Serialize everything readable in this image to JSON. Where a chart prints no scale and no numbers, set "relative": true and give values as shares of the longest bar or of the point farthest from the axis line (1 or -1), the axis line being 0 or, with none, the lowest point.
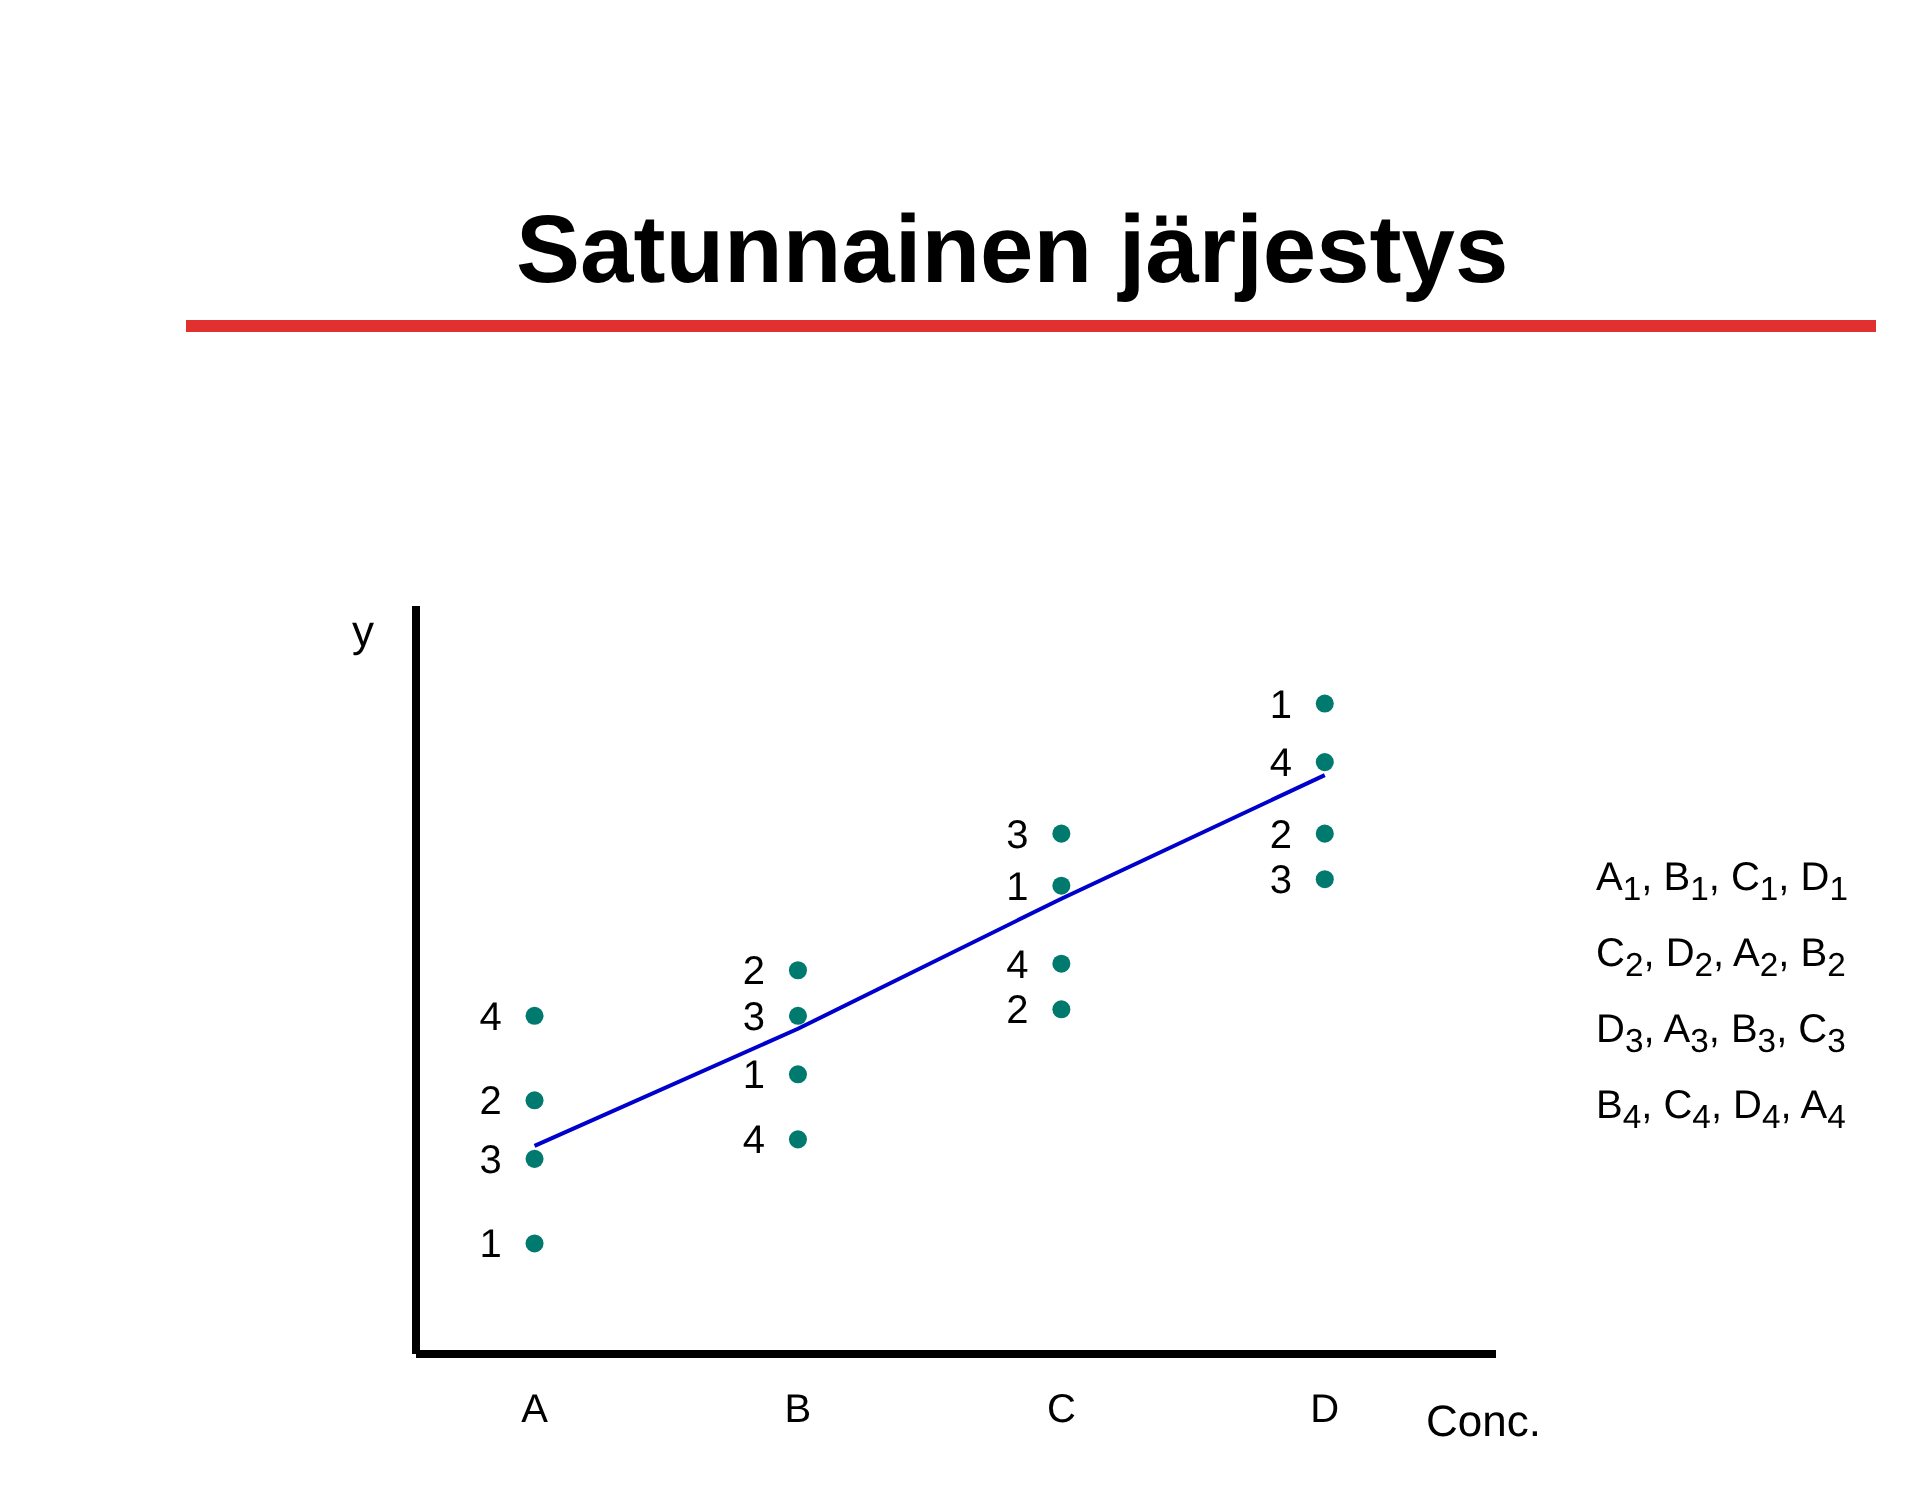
{
  "chart_data": {
    "type": "scatter",
    "title": "Satunnainen järjestys",
    "xlabel": "Conc.",
    "ylabel": "y",
    "relative": true,
    "categories": [
      "A",
      "B",
      "C",
      "D"
    ],
    "marker": "circle",
    "grid": false,
    "legend": false,
    "series": [
      {
        "x": [
          "A",
          "A",
          "A",
          "A"
        ],
        "values": [
          0.52,
          0.39,
          0.3,
          0.17
        ],
        "color": "#007a6e"
      },
      {
        "x": [
          "B",
          "B",
          "B",
          "B"
        ],
        "values": [
          0.59,
          0.52,
          0.43,
          0.33
        ],
        "color": "#007a6e"
      },
      {
        "x": [
          "C",
          "C",
          "C",
          "C"
        ],
        "values": [
          0.8,
          0.72,
          0.6,
          0.53
        ],
        "color": "#007a6e"
      },
      {
        "x": [
          "D",
          "D",
          "D",
          "D"
        ],
        "values": [
          1,
          0.91,
          0.8,
          0.73
        ],
        "color": "#007a6e"
      },
      {
        "type": "line",
        "x": [
          "A",
          "B",
          "C",
          "D"
        ],
        "values": [
          0.32,
          0.5,
          0.7,
          0.89
        ],
        "color": "#0000cc",
        "line_style": "solid",
        "marker": "none"
      }
    ],
    "annotations": [
      "A$_{1}$, B$_{1}$, C$_{1}$, D$_{1}$",
      "C$_{2}$, D$_{2}$, A$_{2}$, B$_{2}$",
      "D$_{3}$, A$_{3}$, B$_{3}$, C$_{3}$",
      "B$_{4}$, C$_{4}$, D$_{4}$, A$_{4}$",
      {
        "text": "4",
        "x": "A",
        "y": 0.52
      },
      {
        "text": "2",
        "x": "A",
        "y": 0.39
      },
      {
        "text": "3",
        "x": "A",
        "y": 0.3
      },
      {
        "text": "1",
        "x": "A",
        "y": 0.17
      },
      {
        "text": "2",
        "x": "B",
        "y": 0.59
      },
      {
        "text": "3",
        "x": "B",
        "y": 0.52
      },
      {
        "text": "1",
        "x": "B",
        "y": 0.43
      },
      {
        "text": "4",
        "x": "B",
        "y": 0.33
      },
      {
        "text": "3",
        "x": "C",
        "y": 0.8
      },
      {
        "text": "1",
        "x": "C",
        "y": 0.72
      },
      {
        "text": "4",
        "x": "C",
        "y": 0.6
      },
      {
        "text": "2",
        "x": "C",
        "y": 0.53
      },
      {
        "text": "1",
        "x": "D",
        "y": 1
      },
      {
        "text": "4",
        "x": "D",
        "y": 0.91
      },
      {
        "text": "2",
        "x": "D",
        "y": 0.8
      },
      {
        "text": "3",
        "x": "D",
        "y": 0.73
      }
    ]
  }
}
